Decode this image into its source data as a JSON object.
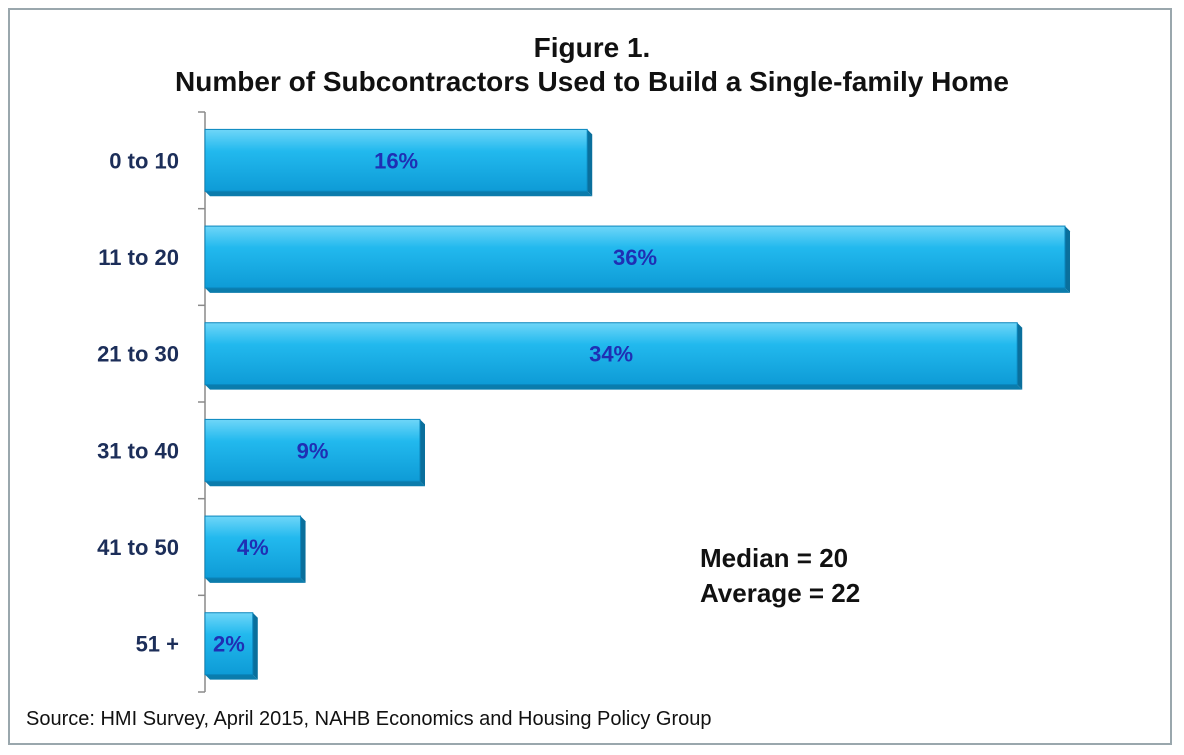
{
  "chart_data": {
    "type": "bar",
    "orientation": "horizontal",
    "title": "Figure 1.",
    "subtitle": "Number of Subcontractors Used to Build a Single-family Home",
    "categories": [
      "0 to 10",
      "11 to 20",
      "21 to 30",
      "31 to 40",
      "41 to 50",
      "51 +"
    ],
    "values": [
      16,
      36,
      34,
      9,
      4,
      2
    ],
    "value_labels": [
      "16%",
      "36%",
      "34%",
      "9%",
      "4%",
      "2%"
    ],
    "xlim": [
      0,
      36
    ],
    "grid": false,
    "bar_color": "#1ab0e8",
    "annotations": [
      "Median = 20",
      "Average = 22"
    ],
    "source": "Source: HMI Survey,  April 2015,  NAHB Economics and Housing Policy Group"
  }
}
